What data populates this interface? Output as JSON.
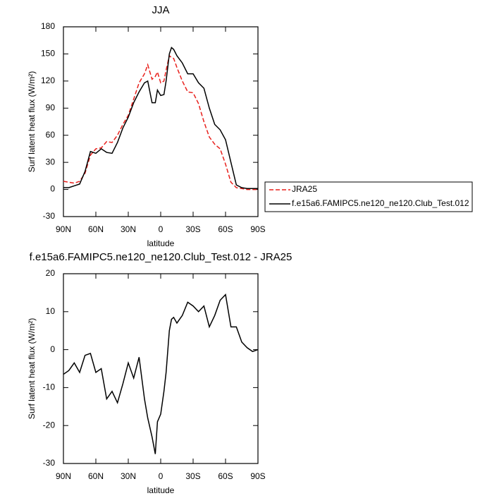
{
  "chart_data": [
    {
      "type": "line",
      "title": "JJA",
      "xlabel": "latitude",
      "ylabel": "Surf latent heat flux (W/m²)",
      "x": [
        90,
        85,
        80,
        75,
        70,
        65,
        60,
        55,
        50,
        45,
        40,
        35,
        30,
        25,
        20,
        15,
        12,
        8,
        5,
        3,
        0,
        -3,
        -5,
        -8,
        -10,
        -12,
        -15,
        -20,
        -25,
        -30,
        -35,
        -40,
        -45,
        -50,
        -55,
        -60,
        -65,
        -70,
        -75,
        -80,
        -85,
        -90
      ],
      "series": [
        {
          "name": "JRA25",
          "color": "#e8201c",
          "line_style": "dashed",
          "values": [
            9,
            8,
            7,
            9,
            18,
            38,
            45,
            46,
            53,
            52,
            60,
            72,
            82,
            100,
            118,
            128,
            138,
            122,
            125,
            130,
            118,
            120,
            132,
            148,
            146,
            145,
            135,
            120,
            108,
            107,
            95,
            75,
            58,
            50,
            45,
            28,
            8,
            2,
            1,
            0,
            0,
            0
          ]
        },
        {
          "name": "f.e15a6.FAMIPC5.ne120_ne120.Club_Test.012",
          "color": "#000000",
          "line_style": "solid",
          "values": [
            2,
            2,
            4,
            6,
            20,
            42,
            40,
            45,
            41,
            40,
            52,
            68,
            80,
            96,
            108,
            118,
            120,
            96,
            96,
            110,
            104,
            105,
            120,
            150,
            157,
            155,
            148,
            140,
            128,
            128,
            118,
            112,
            90,
            72,
            66,
            55,
            30,
            5,
            2,
            1,
            1,
            1
          ]
        }
      ],
      "xlim": [
        90,
        -90
      ],
      "xticks": [
        {
          "value": 90,
          "label": "90N"
        },
        {
          "value": 60,
          "label": "60N"
        },
        {
          "value": 30,
          "label": "30N"
        },
        0,
        {
          "value": -30,
          "label": "30S"
        },
        {
          "value": -60,
          "label": "60S"
        },
        {
          "value": -90,
          "label": "90S"
        }
      ],
      "ylim": [
        -30,
        180
      ],
      "yticks": [
        -30,
        0,
        30,
        60,
        90,
        120,
        150,
        180
      ],
      "legend": "right"
    },
    {
      "type": "line",
      "title": "f.e15a6.FAMIPC5.ne120_ne120.Club_Test.012 - JRA25",
      "xlabel": "latitude",
      "ylabel": "Surf latent heat flux (W/m²)",
      "x": [
        90,
        85,
        80,
        75,
        70,
        65,
        60,
        55,
        50,
        45,
        40,
        35,
        30,
        25,
        20,
        15,
        12,
        8,
        5,
        3,
        0,
        -3,
        -5,
        -8,
        -10,
        -12,
        -15,
        -20,
        -25,
        -30,
        -35,
        -40,
        -45,
        -50,
        -55,
        -60,
        -65,
        -70,
        -75,
        -80,
        -85,
        -90
      ],
      "values": [
        -6.5,
        -5.5,
        -3.5,
        -6,
        -1.5,
        -1,
        -6,
        -5,
        -13,
        -11,
        -14,
        -9,
        -3.5,
        -7.5,
        -2,
        -13,
        -18,
        -23,
        -27.5,
        -19,
        -17,
        -11,
        -6,
        5,
        8,
        8.5,
        7,
        9,
        12.5,
        11.5,
        10,
        11.5,
        6,
        9,
        13,
        14.5,
        6,
        6,
        2,
        0.5,
        -0.5,
        0
      ],
      "color": "#000000",
      "xlim": [
        90,
        -90
      ],
      "xticks": [
        {
          "value": 90,
          "label": "90N"
        },
        {
          "value": 60,
          "label": "60N"
        },
        {
          "value": 30,
          "label": "30N"
        },
        0,
        {
          "value": -30,
          "label": "30S"
        },
        {
          "value": -60,
          "label": "60S"
        },
        {
          "value": -90,
          "label": "90S"
        }
      ],
      "ylim": [
        -30,
        20
      ],
      "yticks": [
        -30,
        -20,
        -10,
        0,
        10,
        20
      ]
    }
  ]
}
